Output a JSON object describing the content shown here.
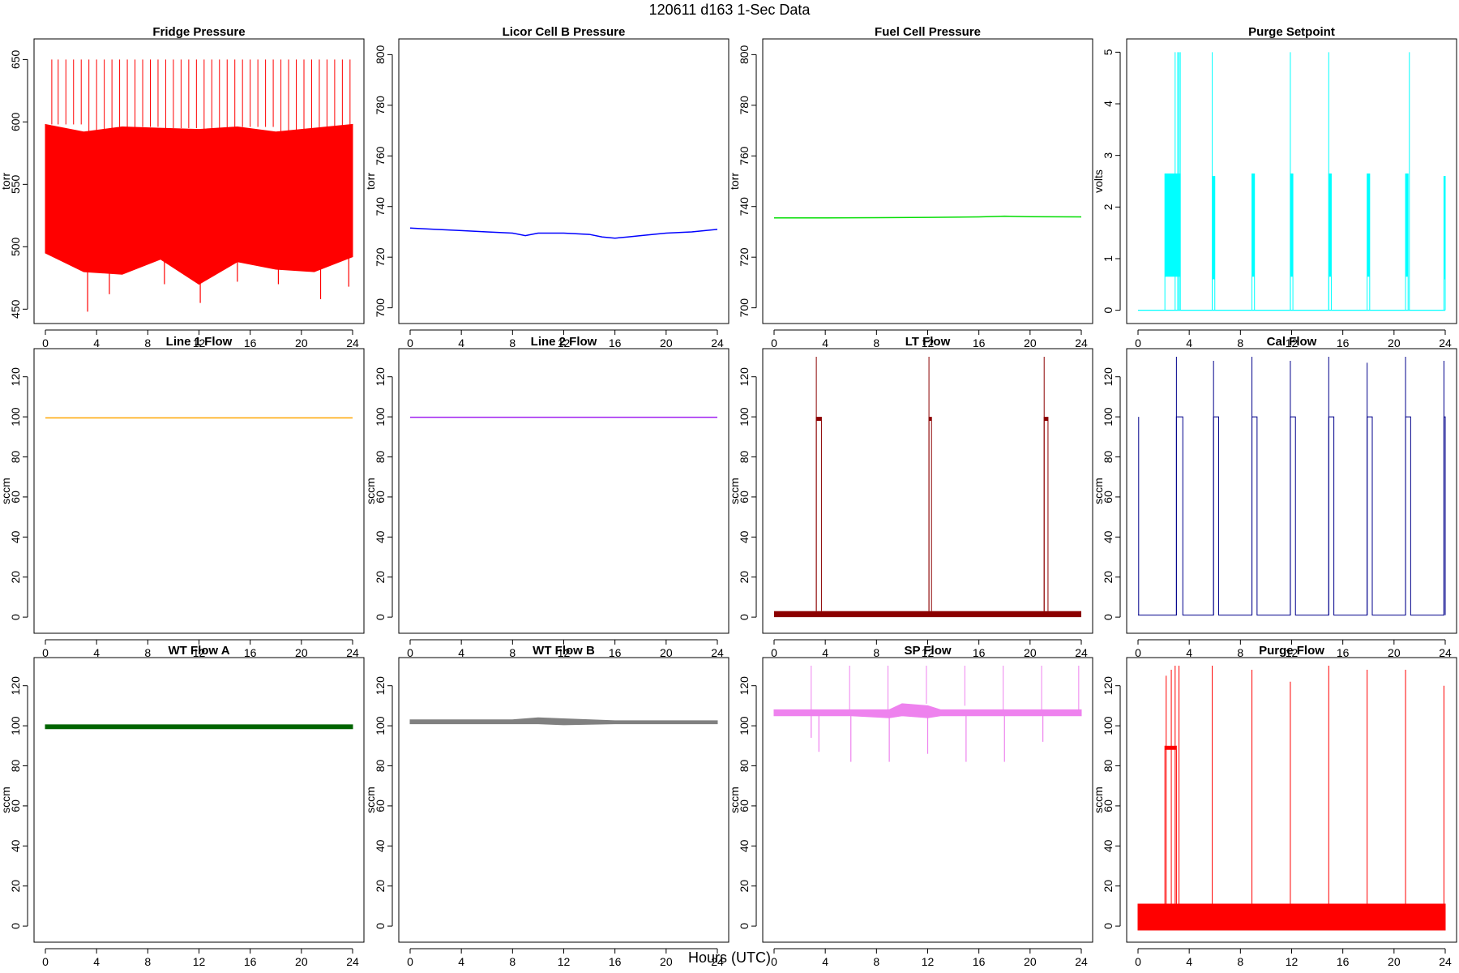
{
  "figure": {
    "title": "120611   d163   1-Sec Data",
    "xlabel": "Hours (UTC)"
  },
  "chart_data": [
    {
      "id": "fridge",
      "type": "line",
      "title": "Fridge Pressure",
      "ylabel": "torr",
      "color": "#ff0000",
      "xlim": [
        0,
        24
      ],
      "xticks": [
        0,
        4,
        8,
        12,
        16,
        20,
        24
      ],
      "ylim": [
        445,
        660
      ],
      "yticks": [
        450,
        500,
        550,
        600,
        650
      ],
      "band": {
        "x": [
          0,
          3,
          6,
          9,
          12,
          15,
          18,
          21,
          24
        ],
        "low": [
          495,
          480,
          478,
          490,
          470,
          488,
          482,
          480,
          492
        ],
        "high": [
          598,
          592,
          596,
          595,
          594,
          596,
          592,
          595,
          598
        ]
      },
      "spikes": {
        "x": [
          0.5,
          1.0,
          1.6,
          2.2,
          2.8,
          3.4,
          4.0,
          4.6,
          5.2,
          5.8,
          6.4,
          7.0,
          7.6,
          8.2,
          8.8,
          9.4,
          10.0,
          10.6,
          11.2,
          11.8,
          12.4,
          13.0,
          13.6,
          14.2,
          14.8,
          15.4,
          16.0,
          16.6,
          17.2,
          17.8,
          18.4,
          19.0,
          19.6,
          20.2,
          20.8,
          21.4,
          22.0,
          22.6,
          23.2,
          23.8
        ],
        "y": 650
      },
      "dips": {
        "x": [
          3.3,
          5.0,
          9.3,
          12.1,
          15.0,
          18.2,
          21.5,
          23.7
        ],
        "y": [
          448,
          462,
          470,
          455,
          472,
          470,
          458,
          468
        ]
      }
    },
    {
      "id": "licor",
      "type": "line",
      "title": "Licor Cell B Pressure",
      "ylabel": "torr",
      "color": "#0000ff",
      "xlim": [
        0,
        24
      ],
      "xticks": [
        0,
        4,
        8,
        12,
        16,
        20,
        24
      ],
      "ylim": [
        697,
        803
      ],
      "yticks": [
        700,
        720,
        740,
        760,
        780,
        800
      ],
      "x": [
        0,
        2,
        4,
        6,
        8,
        9,
        10,
        12,
        14,
        15,
        16,
        17,
        18,
        20,
        22,
        24
      ],
      "y": [
        731.5,
        731,
        730.5,
        730,
        729.5,
        728.5,
        729.5,
        729.5,
        729,
        728,
        727.5,
        728,
        728.5,
        729.5,
        730,
        731
      ]
    },
    {
      "id": "fuelcell",
      "type": "line",
      "title": "Fuel Cell Pressure",
      "ylabel": "torr",
      "color": "#00dd00",
      "xlim": [
        0,
        24
      ],
      "xticks": [
        0,
        4,
        8,
        12,
        16,
        20,
        24
      ],
      "ylim": [
        697,
        803
      ],
      "yticks": [
        700,
        720,
        740,
        760,
        780,
        800
      ],
      "x": [
        0,
        4,
        8,
        12,
        16,
        18,
        20,
        24
      ],
      "y": [
        735.5,
        735.5,
        735.6,
        735.7,
        735.9,
        736.2,
        736,
        735.9
      ]
    },
    {
      "id": "purgesp",
      "type": "line",
      "title": "Purge Setpoint",
      "ylabel": "volts",
      "color": "#00ffff",
      "xlim": [
        0,
        24
      ],
      "xticks": [
        0,
        4,
        8,
        12,
        16,
        20,
        24
      ],
      "ylim": [
        -0.1,
        5.1
      ],
      "yticks": [
        0,
        1,
        2,
        3,
        4,
        5
      ],
      "pulses": [
        {
          "x0": 2.1,
          "x1": 3.3,
          "level": 2.65
        },
        {
          "x0": 5.8,
          "x1": 6.0,
          "level": 2.6
        },
        {
          "x0": 8.9,
          "x1": 9.1,
          "level": 2.65
        },
        {
          "x0": 11.9,
          "x1": 12.1,
          "level": 2.65
        },
        {
          "x0": 14.9,
          "x1": 15.1,
          "level": 2.65
        },
        {
          "x0": 17.9,
          "x1": 18.1,
          "level": 2.65
        },
        {
          "x0": 20.9,
          "x1": 21.1,
          "level": 2.65
        },
        {
          "x0": 23.9,
          "x1": 24.0,
          "level": 2.6
        }
      ],
      "spikes": {
        "x": [
          2.9,
          3.1,
          3.2,
          3.3,
          5.8,
          11.9,
          14.9,
          21.2
        ],
        "y": 5
      }
    },
    {
      "id": "line1",
      "type": "line",
      "title": "Line 1 Flow",
      "ylabel": "sccm",
      "color": "#ffa500",
      "xlim": [
        0,
        24
      ],
      "xticks": [
        0,
        4,
        8,
        12,
        16,
        20,
        24
      ],
      "ylim": [
        -4,
        130
      ],
      "yticks": [
        0,
        20,
        40,
        60,
        80,
        100,
        120
      ],
      "x": [
        0,
        24
      ],
      "y": [
        99.5,
        99.5
      ]
    },
    {
      "id": "line2",
      "type": "line",
      "title": "Line 2 Flow",
      "ylabel": "sccm",
      "color": "#a020f0",
      "xlim": [
        0,
        24
      ],
      "xticks": [
        0,
        4,
        8,
        12,
        16,
        20,
        24
      ],
      "ylim": [
        -4,
        130
      ],
      "yticks": [
        0,
        20,
        40,
        60,
        80,
        100,
        120
      ],
      "x": [
        0,
        24
      ],
      "y": [
        99.8,
        99.8
      ]
    },
    {
      "id": "ltflow",
      "type": "line",
      "title": "LT Flow",
      "ylabel": "sccm",
      "color": "#8b0000",
      "xlim": [
        0,
        24
      ],
      "xticks": [
        0,
        4,
        8,
        12,
        16,
        20,
        24
      ],
      "ylim": [
        -4,
        130
      ],
      "yticks": [
        0,
        20,
        40,
        60,
        80,
        100,
        120
      ],
      "baseline": {
        "low": 0,
        "high": 3
      },
      "pulses": [
        {
          "x0": 3.3,
          "x1": 3.7,
          "level": 100
        },
        {
          "x0": 12.1,
          "x1": 12.3,
          "level": 100
        },
        {
          "x0": 21.1,
          "x1": 21.4,
          "level": 100
        }
      ],
      "spikes": {
        "x": [
          3.3,
          12.1,
          21.1
        ],
        "y": 130
      }
    },
    {
      "id": "calflow",
      "type": "line",
      "title": "Cal Flow",
      "ylabel": "sccm",
      "color": "#00008b",
      "xlim": [
        0,
        24
      ],
      "xticks": [
        0,
        4,
        8,
        12,
        16,
        20,
        24
      ],
      "ylim": [
        -4,
        130
      ],
      "yticks": [
        0,
        20,
        40,
        60,
        80,
        100,
        120
      ],
      "base": 1,
      "pulses": [
        {
          "x0": 3.0,
          "x1": 3.5,
          "level": 100
        },
        {
          "x0": 5.9,
          "x1": 6.3,
          "level": 100
        },
        {
          "x0": 8.9,
          "x1": 9.3,
          "level": 100
        },
        {
          "x0": 11.9,
          "x1": 12.3,
          "level": 100
        },
        {
          "x0": 14.9,
          "x1": 15.3,
          "level": 100
        },
        {
          "x0": 17.9,
          "x1": 18.3,
          "level": 100
        },
        {
          "x0": 20.9,
          "x1": 21.3,
          "level": 100
        },
        {
          "x0": 23.9,
          "x1": 24.0,
          "level": 100
        }
      ],
      "spikes": {
        "x": [
          0.05,
          3.0,
          5.9,
          8.9,
          11.9,
          14.9,
          17.9,
          20.9,
          23.9
        ],
        "y": [
          100,
          130,
          128,
          130,
          128,
          130,
          127,
          130,
          128
        ]
      }
    },
    {
      "id": "wta",
      "type": "line",
      "title": "WT Flow A",
      "ylabel": "sccm",
      "color": "#006400",
      "xlim": [
        0,
        24
      ],
      "xticks": [
        0,
        4,
        8,
        12,
        16,
        20,
        24
      ],
      "ylim": [
        -4,
        130
      ],
      "yticks": [
        0,
        20,
        40,
        60,
        80,
        100,
        120
      ],
      "band": {
        "x": [
          0,
          24
        ],
        "low": [
          98.5,
          98.5
        ],
        "high": [
          100.5,
          100.5
        ]
      }
    },
    {
      "id": "wtb",
      "type": "line",
      "title": "WT Flow B",
      "ylabel": "sccm",
      "color": "#808080",
      "xlim": [
        0,
        24
      ],
      "xticks": [
        0,
        4,
        8,
        12,
        16,
        20,
        24
      ],
      "ylim": [
        -4,
        130
      ],
      "yticks": [
        0,
        20,
        40,
        60,
        80,
        100,
        120
      ],
      "band": {
        "x": [
          0,
          8,
          10,
          12,
          16,
          24
        ],
        "low": [
          101,
          101,
          101,
          100.5,
          101,
          101
        ],
        "high": [
          103,
          103,
          104,
          103.5,
          102.5,
          102.5
        ]
      }
    },
    {
      "id": "spflow",
      "type": "line",
      "title": "SP Flow",
      "ylabel": "sccm",
      "color": "#ee82ee",
      "xlim": [
        0,
        24
      ],
      "xticks": [
        0,
        4,
        8,
        12,
        16,
        20,
        24
      ],
      "ylim": [
        -4,
        130
      ],
      "yticks": [
        0,
        20,
        40,
        60,
        80,
        100,
        120
      ],
      "band": {
        "x": [
          0,
          6,
          9,
          10,
          12,
          13,
          16,
          24
        ],
        "low": [
          105,
          105,
          104,
          105,
          104,
          105,
          105,
          105
        ],
        "high": [
          108,
          108,
          108,
          111,
          110,
          108,
          108,
          108
        ]
      },
      "spikes": {
        "x": [
          2.9,
          5.9,
          8.9,
          11.9,
          14.9,
          17.9,
          20.9,
          23.8
        ],
        "y": 130
      },
      "dips": {
        "x": [
          2.9,
          3.5,
          6.0,
          9.0,
          12.0,
          15.0,
          18.0,
          21.0
        ],
        "y": [
          94,
          87,
          82,
          82,
          86,
          82,
          82,
          92
        ]
      }
    },
    {
      "id": "purgeflow",
      "type": "line",
      "title": "Purge Flow",
      "ylabel": "sccm",
      "color": "#ff0000",
      "xlim": [
        0,
        24
      ],
      "xticks": [
        0,
        4,
        8,
        12,
        16,
        20,
        24
      ],
      "ylim": [
        -4,
        130
      ],
      "yticks": [
        0,
        20,
        40,
        60,
        80,
        100,
        120
      ],
      "band": {
        "x": [
          0,
          24
        ],
        "low": [
          -2,
          -2
        ],
        "high": [
          11,
          11
        ]
      },
      "pulses": [
        {
          "x0": 2.1,
          "x1": 3.0,
          "level": 90
        }
      ],
      "spikes": {
        "x": [
          2.2,
          2.6,
          2.9,
          3.2,
          5.8,
          8.9,
          11.9,
          14.9,
          17.9,
          20.9,
          23.9
        ],
        "y": [
          125,
          128,
          130,
          130,
          130,
          128,
          122,
          130,
          128,
          128,
          120
        ]
      }
    }
  ]
}
